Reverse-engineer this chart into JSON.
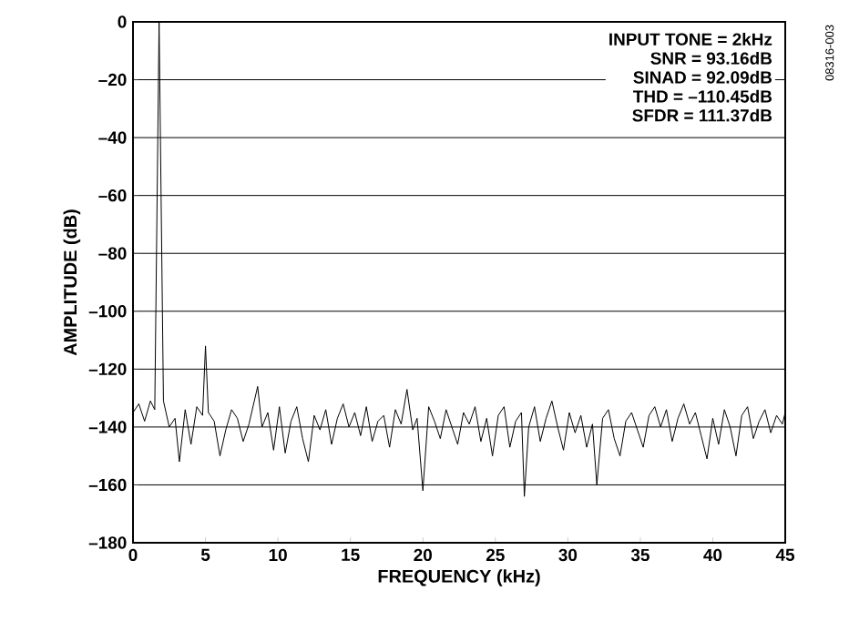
{
  "chart_data": {
    "type": "line",
    "xlabel": "FREQUENCY (kHz)",
    "ylabel": "AMPLITUDE (dB)",
    "annotations": [
      "INPUT TONE = 2kHz",
      "SNR = 93.16dB",
      "SINAD = 92.09dB",
      "THD = –110.45dB",
      "SFDR = 111.37dB",
      "08316-003"
    ],
    "xlim": [
      0,
      45
    ],
    "xticks": [
      0,
      5,
      10,
      15,
      20,
      25,
      30,
      35,
      40,
      45
    ],
    "ylim": [
      -180,
      0
    ],
    "yticks": [
      {
        "value": -180,
        "label": "–180"
      },
      {
        "value": -160,
        "label": "–160"
      },
      {
        "value": -140,
        "label": "–140"
      },
      {
        "value": -120,
        "label": "–120"
      },
      {
        "value": -100,
        "label": "–100"
      },
      {
        "value": -80,
        "label": "–80"
      },
      {
        "value": -60,
        "label": "–60"
      },
      {
        "value": -40,
        "label": "–40"
      },
      {
        "value": -20,
        "label": "–20"
      },
      {
        "value": 0,
        "label": "0"
      }
    ],
    "grid": "y",
    "series": [
      {
        "color": "#000000",
        "x": [
          0,
          0.4,
          0.8,
          1.2,
          1.5,
          1.8,
          2.1,
          2.5,
          2.9,
          3.2,
          3.6,
          4.0,
          4.4,
          4.8,
          5.0,
          5.2,
          5.6,
          6.0,
          6.4,
          6.8,
          7.2,
          7.6,
          8.0,
          8.6,
          8.9,
          9.3,
          9.7,
          10.1,
          10.5,
          10.9,
          11.3,
          11.7,
          12.1,
          12.5,
          12.9,
          13.3,
          13.7,
          14.1,
          14.5,
          14.9,
          15.3,
          15.7,
          16.1,
          16.5,
          16.9,
          17.3,
          17.7,
          18.1,
          18.5,
          18.9,
          19.3,
          19.6,
          20.0,
          20.4,
          20.8,
          21.2,
          21.6,
          22.0,
          22.4,
          22.8,
          23.2,
          23.6,
          24.0,
          24.4,
          24.8,
          25.2,
          25.6,
          26.0,
          26.4,
          26.8,
          27.0,
          27.3,
          27.7,
          28.1,
          28.5,
          28.9,
          29.3,
          29.7,
          30.1,
          30.5,
          30.9,
          31.3,
          31.7,
          32.0,
          32.4,
          32.8,
          33.2,
          33.6,
          34.0,
          34.4,
          34.8,
          35.2,
          35.6,
          36.0,
          36.4,
          36.8,
          37.2,
          37.6,
          38.0,
          38.4,
          38.8,
          39.2,
          39.6,
          40.0,
          40.4,
          40.8,
          41.2,
          41.6,
          42.0,
          42.4,
          42.8,
          43.2,
          43.6,
          44.0,
          44.4,
          44.8,
          45.0
        ],
        "values": [
          -135,
          -132,
          -138,
          -131,
          -134,
          0,
          -131,
          -140,
          -137,
          -152,
          -134,
          -146,
          -133,
          -136,
          -112,
          -135,
          -138,
          -150,
          -141,
          -134,
          -137,
          -145,
          -139,
          -126,
          -140,
          -135,
          -148,
          -133,
          -149,
          -138,
          -133,
          -144,
          -152,
          -136,
          -141,
          -134,
          -146,
          -137,
          -132,
          -140,
          -135,
          -143,
          -133,
          -145,
          -138,
          -136,
          -147,
          -134,
          -139,
          -127,
          -141,
          -137,
          -162,
          -133,
          -138,
          -144,
          -134,
          -140,
          -146,
          -135,
          -139,
          -133,
          -145,
          -137,
          -150,
          -136,
          -133,
          -147,
          -138,
          -135,
          -164,
          -140,
          -133,
          -145,
          -137,
          -131,
          -140,
          -148,
          -135,
          -142,
          -136,
          -147,
          -139,
          -160,
          -137,
          -134,
          -144,
          -150,
          -138,
          -135,
          -141,
          -147,
          -136,
          -133,
          -140,
          -134,
          -145,
          -137,
          -132,
          -139,
          -135,
          -143,
          -151,
          -137,
          -146,
          -134,
          -140,
          -150,
          -136,
          -133,
          -144,
          -138,
          -134,
          -142,
          -136,
          -139,
          -135
        ]
      }
    ]
  }
}
